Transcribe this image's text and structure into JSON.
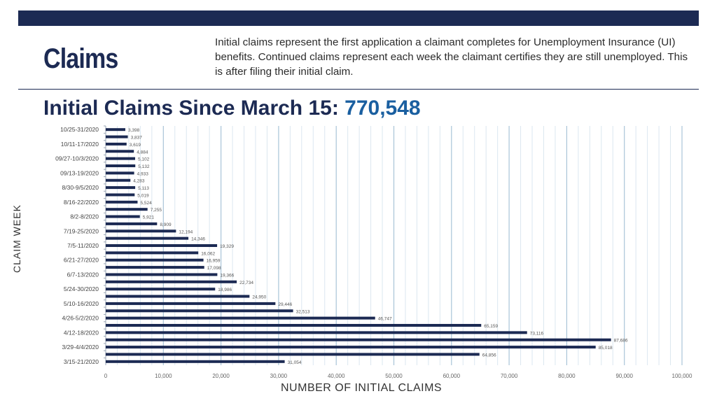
{
  "header": {
    "section_title": "Claims",
    "description": "Initial claims represent the first application a claimant completes for Unemployment Insurance (UI) benefits. Continued claims represent each week the claimant certifies they are still unemployed. This is after filing their initial claim."
  },
  "chart_heading": {
    "label": "Initial Claims Since March 15: ",
    "total": "770,548"
  },
  "colors": {
    "navy": "#1c2a53",
    "accent_blue": "#1a5fa0",
    "bar": "#1c2a53",
    "grid_major": "#a9c4d8",
    "grid_minor": "#dbe7f0"
  },
  "chart_data": {
    "type": "bar",
    "orientation": "horizontal",
    "title": "Initial Claims Since March 15: 770,548",
    "xlabel": "NUMBER OF INITIAL CLAIMS",
    "ylabel": "CLAIM WEEK",
    "xlim": [
      0,
      100000
    ],
    "x_ticks": [
      0,
      10000,
      20000,
      30000,
      40000,
      50000,
      60000,
      70000,
      80000,
      90000,
      100000
    ],
    "x_tick_labels": [
      "0",
      "10,000",
      "20,000",
      "30,000",
      "40,000",
      "50,000",
      "60,000",
      "70,000",
      "80,000",
      "90,000",
      "100,000"
    ],
    "grid": true,
    "minor_grid_step": 2000,
    "categories": [
      "10/25-31/2020",
      "",
      "10/11-17/2020",
      "",
      "09/27-10/3/2020",
      "",
      "09/13-19/2020",
      "",
      "8/30-9/5/2020",
      "",
      "8/16-22/2020",
      "",
      "8/2-8/2020",
      "",
      "7/19-25/2020",
      "",
      "7/5-11/2020",
      "",
      "6/21-27/2020",
      "",
      "6/7-13/2020",
      "",
      "5/24-30/2020",
      "",
      "5/10-16/2020",
      "",
      "4/26-5/2/2020",
      "",
      "4/12-18/2020",
      "",
      "3/29-4/4/2020",
      "",
      "3/15-21/2020"
    ],
    "values": [
      3398,
      3837,
      3619,
      4884,
      5102,
      5132,
      4933,
      4283,
      5113,
      5019,
      5524,
      7255,
      5921,
      8909,
      12194,
      14346,
      19329,
      16062,
      16959,
      17098,
      19366,
      22734,
      18986,
      24950,
      29446,
      32513,
      46747,
      65159,
      73116,
      87686,
      85018,
      64856,
      31054
    ],
    "value_labels": [
      "3,398",
      "3,837",
      "3,619",
      "4,884",
      "5,102",
      "5,132",
      "4,933",
      "4,283",
      "5,113",
      "5,019",
      "5,524",
      "7,255",
      "5,921",
      "8,909",
      "12,194",
      "14,346",
      "19,329",
      "16,062",
      "16,959",
      "17,098",
      "19,366",
      "22,734",
      "18,986",
      "24,950",
      "29,446",
      "32,513",
      "46,747",
      "65,159",
      "73,116",
      "87,686",
      "85,018",
      "64,856",
      "31,054"
    ]
  }
}
